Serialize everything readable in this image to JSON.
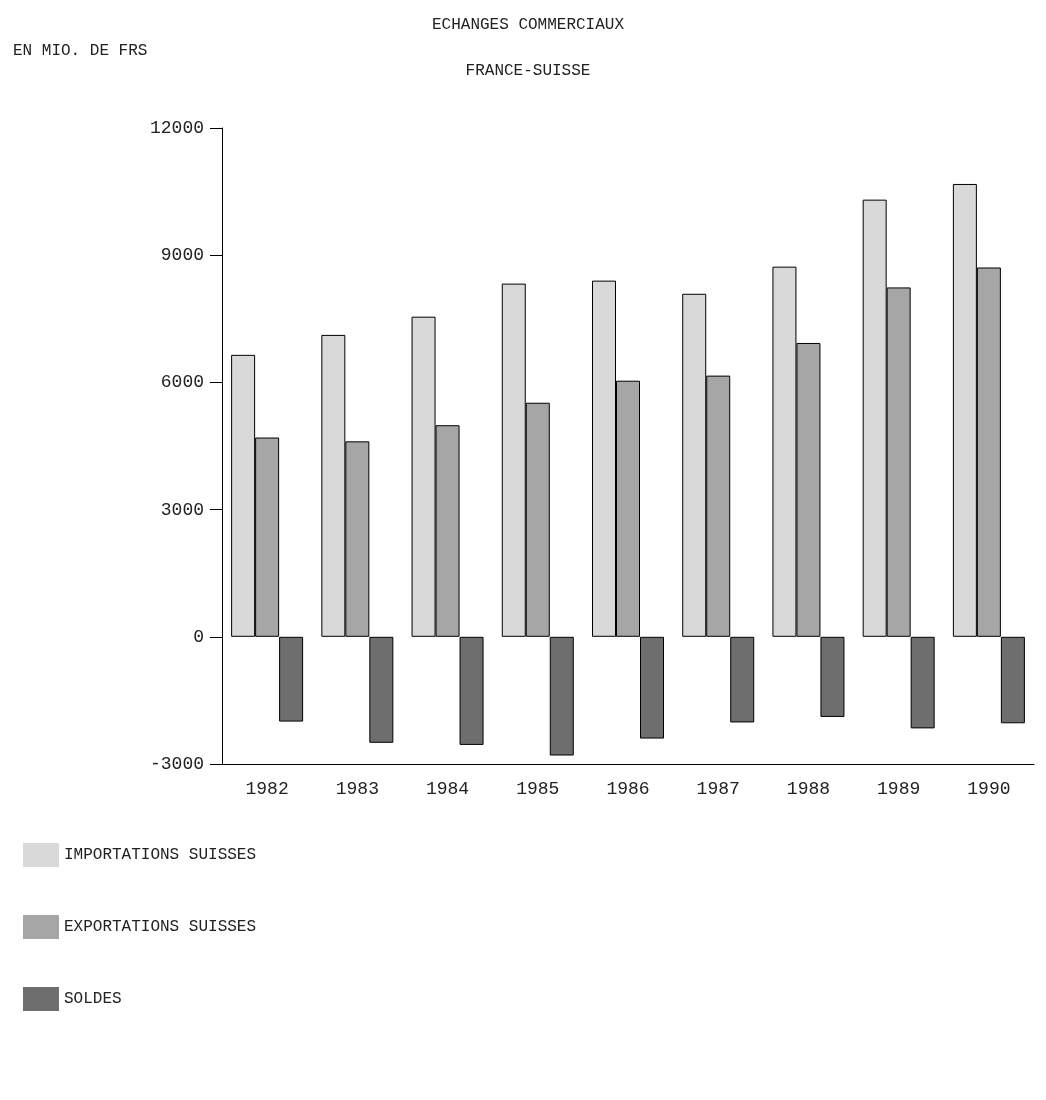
{
  "chart_data": {
    "type": "bar",
    "title": "ECHANGES COMMERCIAUX",
    "subtitle": "FRANCE-SUISSE",
    "ylabel": "EN MIO. DE FRS",
    "categories": [
      "1982",
      "1983",
      "1984",
      "1985",
      "1986",
      "1987",
      "1988",
      "1989",
      "1990"
    ],
    "series": [
      {
        "name": "IMPORTATIONS SUISSES",
        "color": "#d9d9d9",
        "values": [
          6650,
          7120,
          7550,
          8330,
          8400,
          8090,
          8730,
          10310,
          10680
        ]
      },
      {
        "name": "EXPORTATIONS SUISSES",
        "color": "#a6a6a6",
        "values": [
          4700,
          4610,
          4990,
          5520,
          6040,
          6160,
          6930,
          8240,
          8710
        ]
      },
      {
        "name": "SOLDES",
        "color": "#6e6e6e",
        "values": [
          -2000,
          -2500,
          -2550,
          -2800,
          -2400,
          -2020,
          -1890,
          -2160,
          -2040
        ]
      }
    ],
    "ylim": [
      -3000,
      12000
    ],
    "yticks": [
      -3000,
      0,
      3000,
      6000,
      9000,
      12000
    ],
    "grid": false,
    "legend": "bottom left"
  }
}
